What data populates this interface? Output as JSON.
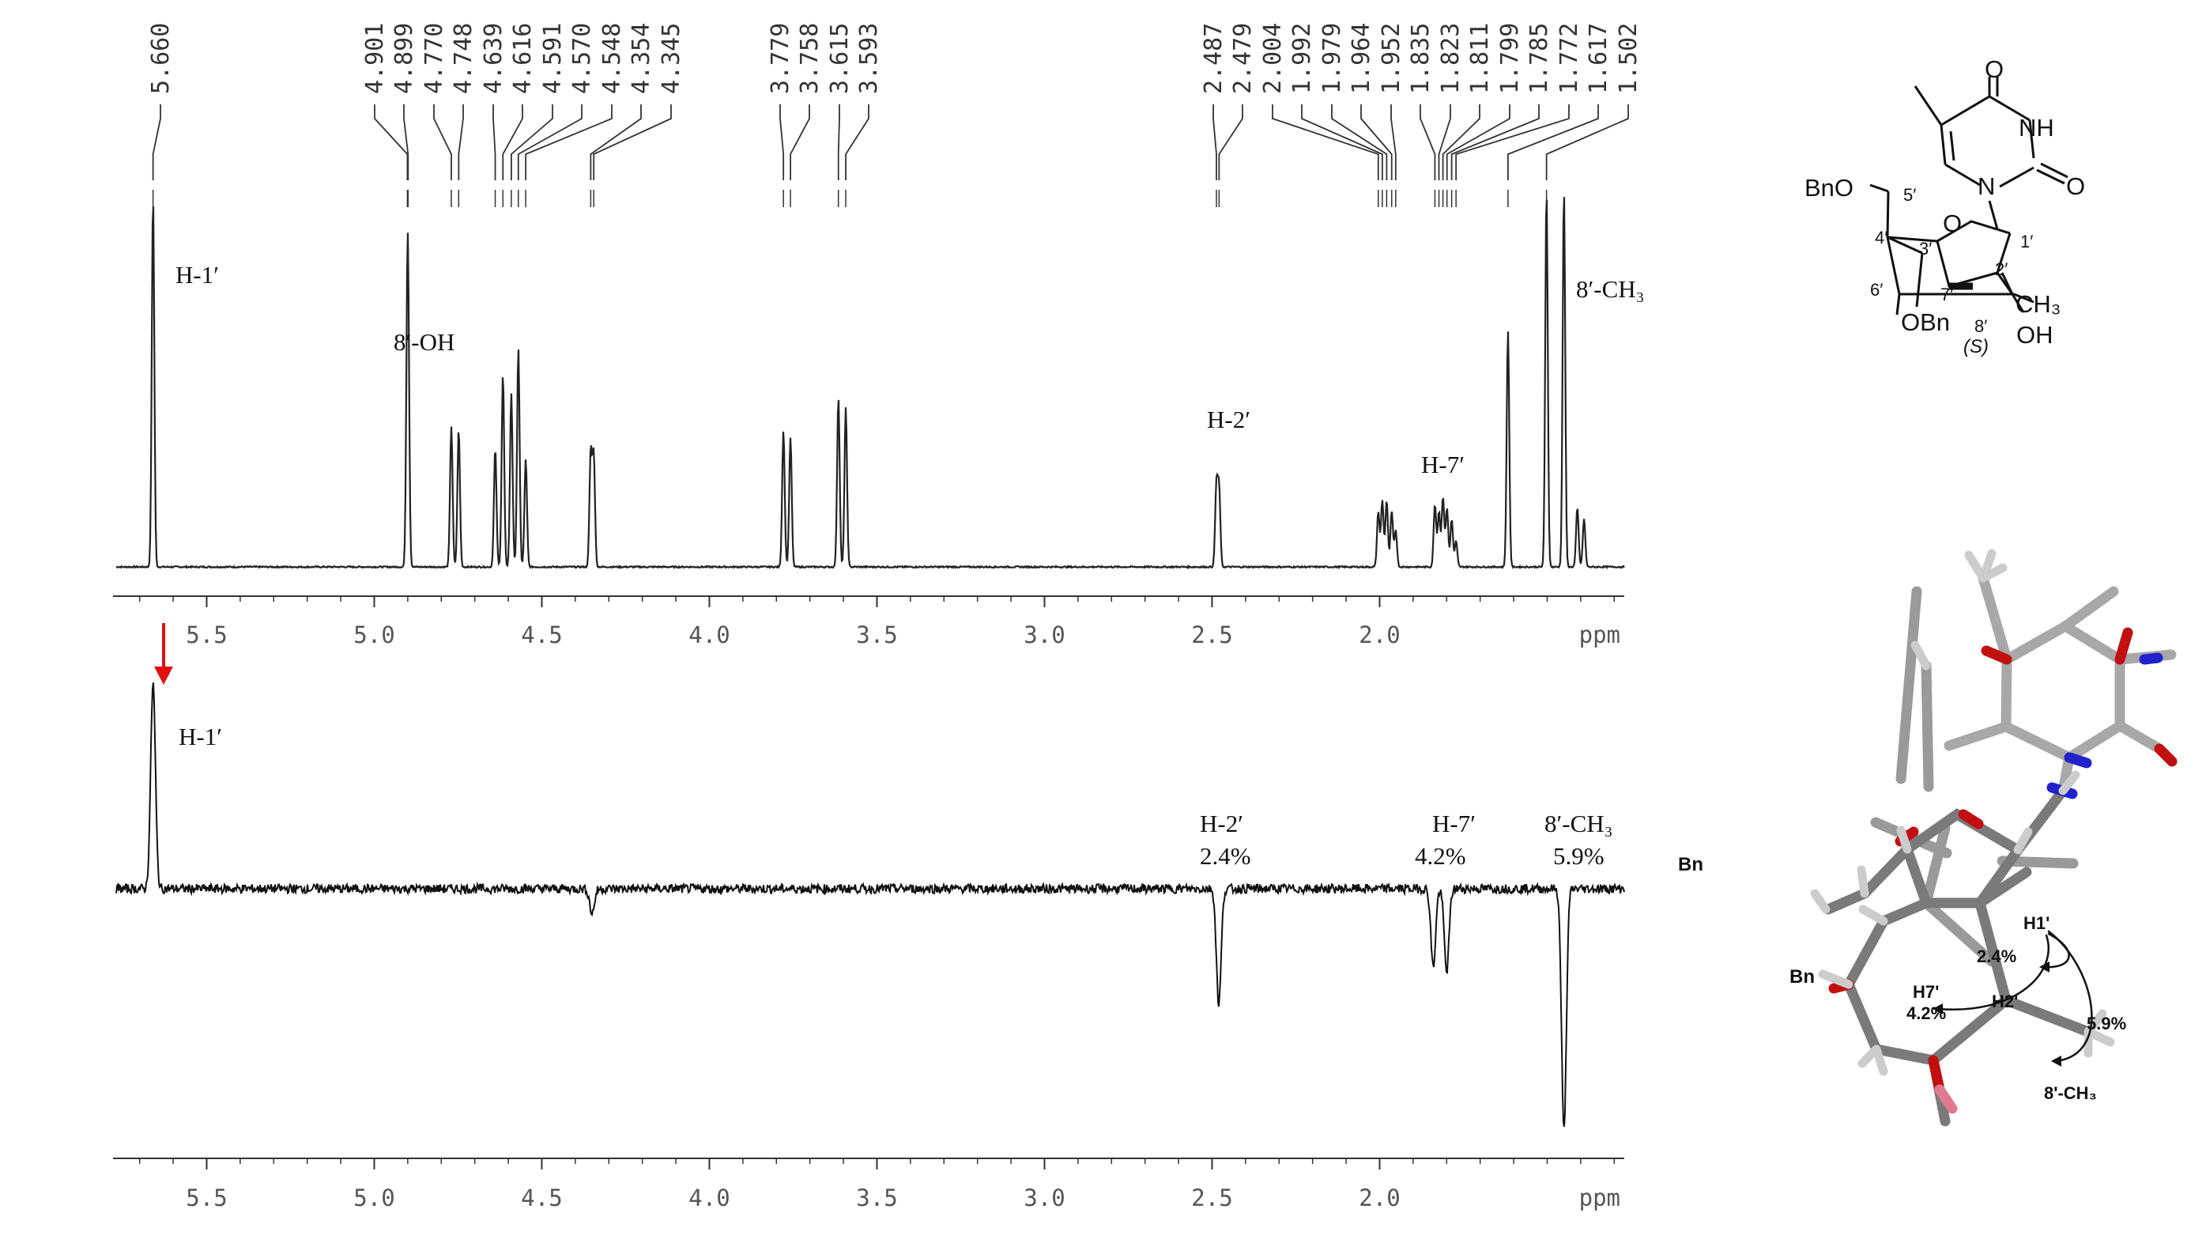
{
  "chart_data": [
    {
      "type": "line",
      "title": "",
      "xlabel": "ppm",
      "ylabel": "",
      "xlim": [
        5.77,
        1.27
      ],
      "x_reversed": true,
      "xticks": [
        "5.5",
        "5.0",
        "4.5",
        "4.0",
        "3.5",
        "3.0",
        "2.5",
        "2.0"
      ],
      "peak_labels": [
        "5.660",
        "4.901",
        "4.899",
        "4.770",
        "4.748",
        "4.639",
        "4.616",
        "4.591",
        "4.570",
        "4.548",
        "4.354",
        "4.345",
        "3.779",
        "3.758",
        "3.615",
        "3.593",
        "2.487",
        "2.479",
        "2.004",
        "1.992",
        "1.979",
        "1.964",
        "1.952",
        "1.835",
        "1.823",
        "1.811",
        "1.799",
        "1.785",
        "1.772",
        "1.617",
        "1.502"
      ],
      "series": [
        {
          "peaks": [
            {
              "ppm": 5.66,
              "height": 1.0
            },
            {
              "ppm": 4.901,
              "height": 0.49
            },
            {
              "ppm": 4.899,
              "height": 0.45
            },
            {
              "ppm": 4.77,
              "height": 0.38
            },
            {
              "ppm": 4.748,
              "height": 0.37
            },
            {
              "ppm": 4.639,
              "height": 0.32
            },
            {
              "ppm": 4.616,
              "height": 0.52
            },
            {
              "ppm": 4.591,
              "height": 0.47
            },
            {
              "ppm": 4.57,
              "height": 0.59
            },
            {
              "ppm": 4.548,
              "height": 0.29
            },
            {
              "ppm": 4.354,
              "height": 0.31
            },
            {
              "ppm": 4.345,
              "height": 0.3
            },
            {
              "ppm": 3.779,
              "height": 0.37
            },
            {
              "ppm": 3.758,
              "height": 0.35
            },
            {
              "ppm": 3.615,
              "height": 0.46
            },
            {
              "ppm": 3.593,
              "height": 0.43
            },
            {
              "ppm": 2.487,
              "height": 0.22
            },
            {
              "ppm": 2.479,
              "height": 0.21
            },
            {
              "ppm": 2.004,
              "height": 0.15
            },
            {
              "ppm": 1.992,
              "height": 0.18
            },
            {
              "ppm": 1.979,
              "height": 0.18
            },
            {
              "ppm": 1.964,
              "height": 0.15
            },
            {
              "ppm": 1.952,
              "height": 0.1
            },
            {
              "ppm": 1.835,
              "height": 0.17
            },
            {
              "ppm": 1.823,
              "height": 0.15
            },
            {
              "ppm": 1.811,
              "height": 0.19
            },
            {
              "ppm": 1.799,
              "height": 0.16
            },
            {
              "ppm": 1.785,
              "height": 0.13
            },
            {
              "ppm": 1.772,
              "height": 0.07
            },
            {
              "ppm": 1.617,
              "height": 0.64
            },
            {
              "ppm": 1.502,
              "height": 1.02
            },
            {
              "ppm": 1.45,
              "height": 1.02
            },
            {
              "ppm": 1.41,
              "height": 0.16
            },
            {
              "ppm": 1.39,
              "height": 0.13
            }
          ]
        }
      ],
      "annotations": [
        "H-1′",
        "8′-OH",
        "H-2′",
        "H-7′",
        "8′-CH₃"
      ]
    },
    {
      "type": "line",
      "title": "",
      "xlabel": "ppm",
      "ylabel": "",
      "xlim": [
        5.77,
        1.27
      ],
      "x_reversed": true,
      "xticks": [
        "5.5",
        "5.0",
        "4.5",
        "4.0",
        "3.5",
        "3.0",
        "2.5",
        "2.0"
      ],
      "series": [
        {
          "peaks": [
            {
              "ppm": 5.66,
              "height": 1.0
            },
            {
              "ppm": 4.35,
              "height": -0.12
            },
            {
              "ppm": 2.48,
              "height": -0.56
            },
            {
              "ppm": 1.84,
              "height": -0.38
            },
            {
              "ppm": 1.8,
              "height": -0.4
            },
            {
              "ppm": 1.45,
              "height": -1.18
            }
          ]
        }
      ],
      "annotations": [
        {
          "label": "H-1′",
          "value": ""
        },
        {
          "label": "H-2′",
          "value": "2.4%"
        },
        {
          "label": "H-7′",
          "value": "4.2%"
        },
        {
          "label": "8′-CH₃",
          "value": "5.9%"
        }
      ],
      "irradiated": "H-1′"
    }
  ],
  "structure": {
    "labels": {
      "bno_top": "BnO",
      "five": "5′",
      "four": "4′",
      "three": "3′",
      "two": "2′",
      "one": "1′",
      "six": "6′",
      "seven": "7′",
      "eight": "8′",
      "o_ring": "O",
      "n": "N",
      "nh": "NH",
      "o_top": "O",
      "o_right": "O",
      "ch3": "CH₃",
      "oh": "OH",
      "obn": "OBn",
      "s": "(S)"
    }
  },
  "model": {
    "labels": {
      "bn1": "Bn",
      "bn2": "Bn",
      "h1": "H1'",
      "h2": "H2'",
      "h7": "H7'",
      "p24": "2.4%",
      "p42": "4.2%",
      "p59": "5.9%",
      "ch3": "8'-CH₃"
    }
  }
}
